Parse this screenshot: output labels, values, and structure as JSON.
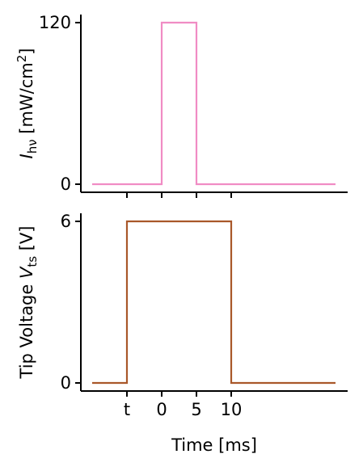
{
  "chart_data": [
    {
      "type": "line",
      "panel": "top",
      "ylabel": {
        "main": "I",
        "sub": "hν",
        "rest": " [mW/cm",
        "sup": "2",
        "close": "]"
      },
      "xlim": [
        -10,
        25
      ],
      "ylim": [
        0,
        120
      ],
      "yticks": [
        {
          "value": 0,
          "label": "0"
        },
        {
          "value": 120,
          "label": "120"
        }
      ],
      "xticks": [
        -5,
        0,
        5,
        10
      ],
      "series": [
        {
          "color": "#f08cc4",
          "x": [
            -10,
            0,
            0,
            5,
            5,
            25
          ],
          "y": [
            0,
            0,
            120,
            120,
            0,
            0
          ]
        }
      ]
    },
    {
      "type": "line",
      "panel": "bottom",
      "ylabel": {
        "main": "Tip Voltage ",
        "italic": "V",
        "sub": "ts",
        "rest": " [V]"
      },
      "xlabel": "Time [ms]",
      "xlim": [
        -10,
        25
      ],
      "ylim": [
        0,
        6
      ],
      "yticks": [
        {
          "value": 0,
          "label": "0"
        },
        {
          "value": 6,
          "label": "6"
        }
      ],
      "xticks": [
        {
          "value": -5,
          "label": "t"
        },
        {
          "value": 0,
          "label": "0"
        },
        {
          "value": 5,
          "label": "5"
        },
        {
          "value": 10,
          "label": "10"
        }
      ],
      "series": [
        {
          "color": "#a9582a",
          "x": [
            -10,
            -5,
            -5,
            10,
            10,
            25
          ],
          "y": [
            0,
            0,
            6,
            6,
            0,
            0
          ]
        }
      ]
    }
  ]
}
